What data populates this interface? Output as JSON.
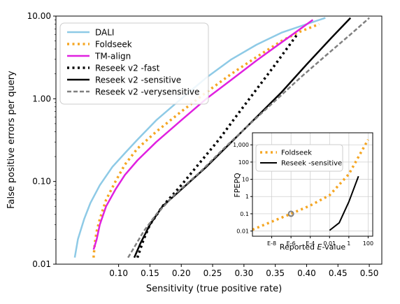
{
  "chart_data": [
    {
      "type": "line",
      "xlabel": "Sensitivity (true positive rate)",
      "ylabel": "False positive errors per query",
      "xscale": "linear",
      "yscale": "log",
      "xlim": [
        0.0,
        0.52
      ],
      "ylim": [
        0.01,
        10.0
      ],
      "xticks": [
        0.1,
        0.15,
        0.2,
        0.25,
        0.3,
        0.35,
        0.4,
        0.45,
        0.5
      ],
      "xtick_labels": [
        "0.10",
        "0.15",
        "0.20",
        "0.25",
        "0.30",
        "0.35",
        "0.40",
        "0.45",
        "0.50"
      ],
      "yticks": [
        0.01,
        0.1,
        1,
        10
      ],
      "ytick_labels": [
        "0.01",
        "0.10",
        "1.00",
        "10.00"
      ],
      "legend_position": "top-left",
      "grid": false,
      "series": [
        {
          "name": "DALI",
          "color": "#8ecae6",
          "style": "solid",
          "x": [
            0.03,
            0.035,
            0.045,
            0.055,
            0.07,
            0.09,
            0.11,
            0.13,
            0.16,
            0.2,
            0.24,
            0.28,
            0.32,
            0.36,
            0.4,
            0.43
          ],
          "y": [
            0.012,
            0.02,
            0.035,
            0.055,
            0.09,
            0.15,
            0.22,
            0.32,
            0.55,
            1.0,
            1.8,
            3.0,
            4.5,
            6.3,
            8.0,
            9.5
          ]
        },
        {
          "name": "Foldseek",
          "color": "#f5a623",
          "style": "dotted",
          "x": [
            0.06,
            0.062,
            0.065,
            0.07,
            0.08,
            0.095,
            0.11,
            0.13,
            0.16,
            0.2,
            0.24,
            0.28,
            0.32,
            0.36,
            0.39,
            0.42
          ],
          "y": [
            0.012,
            0.018,
            0.025,
            0.035,
            0.06,
            0.1,
            0.16,
            0.25,
            0.4,
            0.7,
            1.2,
            2.0,
            3.2,
            5.0,
            6.5,
            8.0
          ]
        },
        {
          "name": "TM-align",
          "color": "#e020e0",
          "style": "solid",
          "x": [
            0.06,
            0.065,
            0.07,
            0.08,
            0.095,
            0.11,
            0.13,
            0.16,
            0.2,
            0.24,
            0.28,
            0.32,
            0.36,
            0.39,
            0.41
          ],
          "y": [
            0.015,
            0.02,
            0.03,
            0.05,
            0.08,
            0.12,
            0.18,
            0.3,
            0.55,
            1.0,
            1.7,
            2.9,
            4.8,
            7.0,
            9.0
          ]
        },
        {
          "name": "Reseek v2 -fast",
          "color": "#000000",
          "style": "dotted",
          "x": [
            0.13,
            0.14,
            0.15,
            0.17,
            0.2,
            0.23,
            0.26,
            0.29,
            0.32,
            0.35,
            0.37,
            0.385
          ],
          "y": [
            0.012,
            0.02,
            0.03,
            0.05,
            0.09,
            0.17,
            0.32,
            0.65,
            1.3,
            2.6,
            4.2,
            6.0
          ]
        },
        {
          "name": "Reseek v2 -sensitive",
          "color": "#000000",
          "style": "solid",
          "x": [
            0.125,
            0.135,
            0.15,
            0.17,
            0.2,
            0.24,
            0.28,
            0.32,
            0.36,
            0.4,
            0.44,
            0.47
          ],
          "y": [
            0.012,
            0.018,
            0.03,
            0.05,
            0.08,
            0.15,
            0.3,
            0.6,
            1.2,
            2.6,
            5.5,
            9.5
          ]
        },
        {
          "name": "Reseek v2 -verysensitive",
          "color": "#808080",
          "style": "dashed",
          "x": [
            0.115,
            0.125,
            0.14,
            0.16,
            0.19,
            0.23,
            0.27,
            0.31,
            0.35,
            0.39,
            0.43,
            0.47,
            0.5
          ],
          "y": [
            0.012,
            0.016,
            0.025,
            0.04,
            0.07,
            0.13,
            0.26,
            0.5,
            0.95,
            1.8,
            3.3,
            6.0,
            9.5
          ]
        }
      ]
    },
    {
      "type": "line",
      "xlabel": "Reported E-value",
      "ylabel": "FPEPQ",
      "xscale": "log",
      "yscale": "log",
      "xlim": [
        1e-10,
        300
      ],
      "ylim": [
        0.005,
        5000
      ],
      "xticks": [
        1e-08,
        1e-06,
        0.0001,
        0.01,
        1,
        100
      ],
      "xtick_labels": [
        "E-8",
        "E-6",
        "E-4",
        "0.01",
        "1",
        "100"
      ],
      "yticks": [
        0.01,
        0.1,
        1,
        10,
        100,
        1000
      ],
      "ytick_labels": [
        "0.01",
        "0.1",
        "1",
        "10",
        "100",
        "1,000"
      ],
      "legend_position": "top-left",
      "grid": true,
      "annotations": [
        {
          "type": "circle",
          "x": 1e-06,
          "y": 0.1
        }
      ],
      "series": [
        {
          "name": "Foldseek",
          "color": "#f5a623",
          "style": "dotted",
          "x": [
            1e-10,
            1e-08,
            1e-06,
            0.0001,
            0.01,
            1,
            100
          ],
          "y": [
            0.012,
            0.035,
            0.1,
            0.3,
            1.2,
            20,
            2000
          ]
        },
        {
          "name": "Reseek -sensitive",
          "color": "#000000",
          "style": "solid",
          "x": [
            0.01,
            0.1,
            1,
            10
          ],
          "y": [
            0.011,
            0.03,
            0.5,
            15
          ]
        }
      ]
    }
  ]
}
